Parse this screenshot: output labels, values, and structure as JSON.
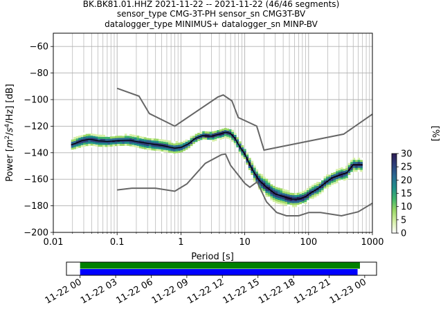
{
  "title_lines": [
    "BK.BK81.01.HHZ   2021-11-22 -- 2021-11-22  (46/46 segments)",
    "sensor_type CMG-3T-PH sensor_sn CMG3T-BV",
    "datalogger_type MINIMUS+ datalogger_sn MINP-BV"
  ],
  "chart_data": {
    "type": "heatmap",
    "xlabel": "Period [s]",
    "ylabel_parts": [
      "Power [",
      "m",
      "2",
      "/",
      "s",
      "4",
      "/Hz] [dB]"
    ],
    "xscale": "log",
    "xlim": [
      0.01,
      1000
    ],
    "ylim": [
      -200,
      -50
    ],
    "x_ticks": [
      {
        "v": 0.01,
        "label": "0.01"
      },
      {
        "v": 0.1,
        "label": "0.1"
      },
      {
        "v": 1,
        "label": "1"
      },
      {
        "v": 10,
        "label": "10"
      },
      {
        "v": 100,
        "label": "100"
      },
      {
        "v": 1000,
        "label": "1000"
      }
    ],
    "y_ticks": [
      {
        "v": -60,
        "label": "−60"
      },
      {
        "v": -80,
        "label": "−80"
      },
      {
        "v": -100,
        "label": "−100"
      },
      {
        "v": -120,
        "label": "−120"
      },
      {
        "v": -140,
        "label": "−140"
      },
      {
        "v": -160,
        "label": "−160"
      },
      {
        "v": -180,
        "label": "−180"
      },
      {
        "v": -200,
        "label": "−200"
      }
    ],
    "grid": true,
    "noise_model_high": [
      [
        0.1,
        -91.5
      ],
      [
        0.22,
        -97.4
      ],
      [
        0.32,
        -110.5
      ],
      [
        0.8,
        -120
      ],
      [
        3.8,
        -98
      ],
      [
        4.6,
        -96.5
      ],
      [
        6.3,
        -101
      ],
      [
        7.9,
        -113.5
      ],
      [
        15.4,
        -120
      ],
      [
        20,
        -138
      ],
      [
        354.8,
        -126
      ],
      [
        1000,
        -111
      ]
    ],
    "noise_model_low": [
      [
        0.1,
        -168
      ],
      [
        0.17,
        -166.7
      ],
      [
        0.4,
        -166.7
      ],
      [
        0.8,
        -169
      ],
      [
        1.24,
        -163.5
      ],
      [
        2.4,
        -148
      ],
      [
        4.3,
        -141.5
      ],
      [
        5,
        -141
      ],
      [
        6,
        -149.5
      ],
      [
        10,
        -163
      ],
      [
        12,
        -166
      ],
      [
        15.6,
        -162
      ],
      [
        21.9,
        -177
      ],
      [
        31.6,
        -185
      ],
      [
        45,
        -187.5
      ],
      [
        70,
        -187.5
      ],
      [
        101,
        -185
      ],
      [
        154,
        -185
      ],
      [
        328,
        -187.5
      ],
      [
        600,
        -184.5
      ],
      [
        1000,
        -178
      ]
    ],
    "mean_curve": [
      [
        0.019,
        -134
      ],
      [
        0.022,
        -133
      ],
      [
        0.028,
        -131
      ],
      [
        0.035,
        -130
      ],
      [
        0.04,
        -130
      ],
      [
        0.05,
        -131
      ],
      [
        0.07,
        -131.5
      ],
      [
        0.1,
        -131
      ],
      [
        0.15,
        -130.5
      ],
      [
        0.2,
        -131.5
      ],
      [
        0.3,
        -133
      ],
      [
        0.5,
        -134.5
      ],
      [
        0.8,
        -136.5
      ],
      [
        1.0,
        -136
      ],
      [
        1.3,
        -133.5
      ],
      [
        1.7,
        -129
      ],
      [
        2.2,
        -127
      ],
      [
        3.0,
        -127.5
      ],
      [
        4.0,
        -126
      ],
      [
        5.0,
        -124.5
      ],
      [
        6.0,
        -125.5
      ],
      [
        7.0,
        -129
      ],
      [
        8.0,
        -134
      ],
      [
        10,
        -141
      ],
      [
        12,
        -149
      ],
      [
        14,
        -155
      ],
      [
        17,
        -161
      ],
      [
        22,
        -166
      ],
      [
        30,
        -171
      ],
      [
        40,
        -173
      ],
      [
        55,
        -175
      ],
      [
        70,
        -175
      ],
      [
        90,
        -173
      ],
      [
        110,
        -170
      ],
      [
        140,
        -167
      ],
      [
        180,
        -163
      ],
      [
        230,
        -159
      ],
      [
        300,
        -157
      ],
      [
        400,
        -155
      ],
      [
        500,
        -149
      ],
      [
        600,
        -149
      ],
      [
        700,
        -149
      ]
    ],
    "band_halfwidth": [
      [
        0.019,
        3
      ],
      [
        0.03,
        4
      ],
      [
        0.1,
        3
      ],
      [
        0.3,
        4
      ],
      [
        1,
        3
      ],
      [
        2,
        2
      ],
      [
        5,
        2
      ],
      [
        10,
        3
      ],
      [
        20,
        5
      ],
      [
        40,
        4
      ],
      [
        100,
        3
      ],
      [
        300,
        3
      ],
      [
        700,
        3
      ]
    ],
    "colorbar": {
      "label": "[%]",
      "range": [
        0,
        30
      ],
      "ticks": [
        {
          "v": 0,
          "label": "0"
        },
        {
          "v": 5,
          "label": "5"
        },
        {
          "v": 10,
          "label": "10"
        },
        {
          "v": 15,
          "label": "15"
        },
        {
          "v": 20,
          "label": "20"
        },
        {
          "v": 25,
          "label": "25"
        },
        {
          "v": 30,
          "label": "30"
        }
      ],
      "colors": [
        "#ffffff",
        "#d7f0a8",
        "#9bd866",
        "#40b56b",
        "#1f8f8a",
        "#2a6a92",
        "#2d3f7a",
        "#2e1d54"
      ]
    },
    "timeline": {
      "range": [
        "2021-11-22 00:00",
        "2021-11-23 01:00"
      ],
      "ticks": [
        {
          "h": 0,
          "label": "11-22 00"
        },
        {
          "h": 3,
          "label": "11-22 03"
        },
        {
          "h": 6,
          "label": "11-22 06"
        },
        {
          "h": 9,
          "label": "11-22 09"
        },
        {
          "h": 12,
          "label": "11-22 12"
        },
        {
          "h": 15,
          "label": "11-22 15"
        },
        {
          "h": 18,
          "label": "11-22 18"
        },
        {
          "h": 21,
          "label": "11-22 21"
        },
        {
          "h": 24,
          "label": "11-23 00"
        }
      ],
      "xlim_hours": [
        -1.15,
        25.0
      ],
      "bars": [
        {
          "start_h": 0.0,
          "end_h": 23.6,
          "color": "#008000"
        },
        {
          "start_h": 0.0,
          "end_h": 23.4,
          "color": "#0000ff"
        }
      ]
    },
    "colors": {
      "noise_models": "#666666",
      "mean": "#000000",
      "grid": "#b0b0b0"
    }
  }
}
